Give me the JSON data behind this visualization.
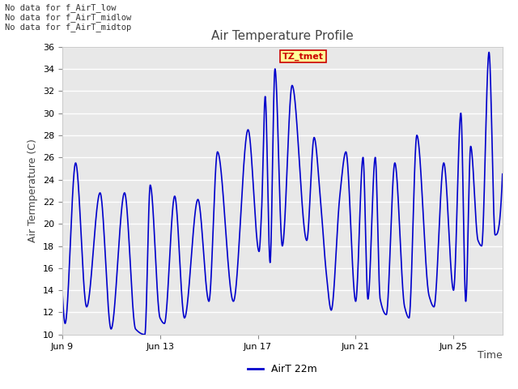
{
  "title": "Air Temperature Profile",
  "xlabel": "Time",
  "ylabel": "Air Termperature (C)",
  "legend_label": "AirT 22m",
  "ylim": [
    10,
    36
  ],
  "xlim_days": [
    0,
    18
  ],
  "line_color": "#0000cc",
  "fig_bg_color": "#ffffff",
  "plot_bg_color": "#e8e8e8",
  "grid_color": "#ffffff",
  "no_data_lines": [
    "No data for f_AirT_low",
    "No data for f_AirT_midlow",
    "No data for f_AirT_midtop"
  ],
  "tz_label": "TZ_tmet",
  "x_tick_labels": [
    "Jun 9",
    "Jun 13",
    "Jun 17",
    "Jun 21",
    "Jun 25"
  ],
  "x_tick_positions": [
    0,
    4,
    8,
    12,
    16
  ],
  "y_ticks": [
    10,
    12,
    14,
    16,
    18,
    20,
    22,
    24,
    26,
    28,
    30,
    32,
    34,
    36
  ],
  "keypoints": [
    [
      0.0,
      14.0
    ],
    [
      0.12,
      11.0
    ],
    [
      0.55,
      25.5
    ],
    [
      1.0,
      12.5
    ],
    [
      1.55,
      22.8
    ],
    [
      2.0,
      10.5
    ],
    [
      2.55,
      22.8
    ],
    [
      3.0,
      10.5
    ],
    [
      3.38,
      10.0
    ],
    [
      3.6,
      23.5
    ],
    [
      4.0,
      11.5
    ],
    [
      4.18,
      11.0
    ],
    [
      4.6,
      22.5
    ],
    [
      5.0,
      11.5
    ],
    [
      5.55,
      22.2
    ],
    [
      6.0,
      13.0
    ],
    [
      6.35,
      26.5
    ],
    [
      7.0,
      13.0
    ],
    [
      7.6,
      28.5
    ],
    [
      8.05,
      17.5
    ],
    [
      8.15,
      21.0
    ],
    [
      8.3,
      31.5
    ],
    [
      8.5,
      16.5
    ],
    [
      8.7,
      34.0
    ],
    [
      9.0,
      18.0
    ],
    [
      9.4,
      32.5
    ],
    [
      10.0,
      18.5
    ],
    [
      10.3,
      27.8
    ],
    [
      10.55,
      22.5
    ],
    [
      10.8,
      15.5
    ],
    [
      11.0,
      12.2
    ],
    [
      11.35,
      22.5
    ],
    [
      11.6,
      26.5
    ],
    [
      12.0,
      13.0
    ],
    [
      12.3,
      26.0
    ],
    [
      12.5,
      13.2
    ],
    [
      12.8,
      26.0
    ],
    [
      13.0,
      13.2
    ],
    [
      13.25,
      11.8
    ],
    [
      13.6,
      25.5
    ],
    [
      14.0,
      12.5
    ],
    [
      14.18,
      11.5
    ],
    [
      14.5,
      28.0
    ],
    [
      15.0,
      13.5
    ],
    [
      15.2,
      12.5
    ],
    [
      15.6,
      25.5
    ],
    [
      16.0,
      14.0
    ],
    [
      16.3,
      30.0
    ],
    [
      16.5,
      13.0
    ],
    [
      16.7,
      27.0
    ],
    [
      17.0,
      18.5
    ],
    [
      17.15,
      18.0
    ],
    [
      17.45,
      35.5
    ],
    [
      17.7,
      19.0
    ],
    [
      18.0,
      24.5
    ]
  ]
}
